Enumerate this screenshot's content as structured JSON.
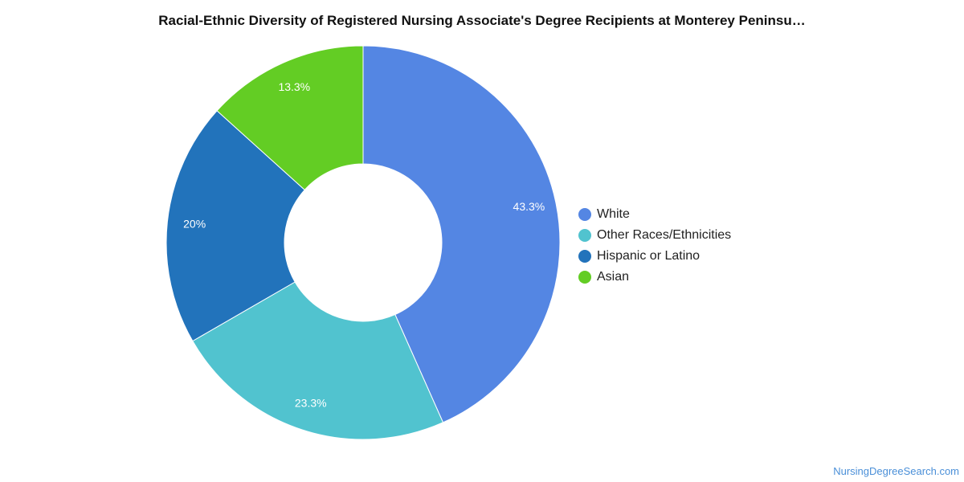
{
  "chart_data": {
    "type": "pie",
    "title": "Racial-Ethnic Diversity of Registered Nursing Associate's Degree Recipients at Monterey Peninsu…",
    "donut": true,
    "legend_position": "right",
    "slices": [
      {
        "label": "White",
        "value": 43.3,
        "display": "43.3%",
        "color": "#5486e3"
      },
      {
        "label": "Other Races/Ethnicities",
        "value": 23.3,
        "display": "23.3%",
        "color": "#51c3cf"
      },
      {
        "label": "Hispanic or Latino",
        "value": 20,
        "display": "20%",
        "color": "#2273bb"
      },
      {
        "label": "Asian",
        "value": 13.3,
        "display": "13.3%",
        "color": "#63cd24"
      }
    ]
  },
  "watermark": "NursingDegreeSearch.com"
}
